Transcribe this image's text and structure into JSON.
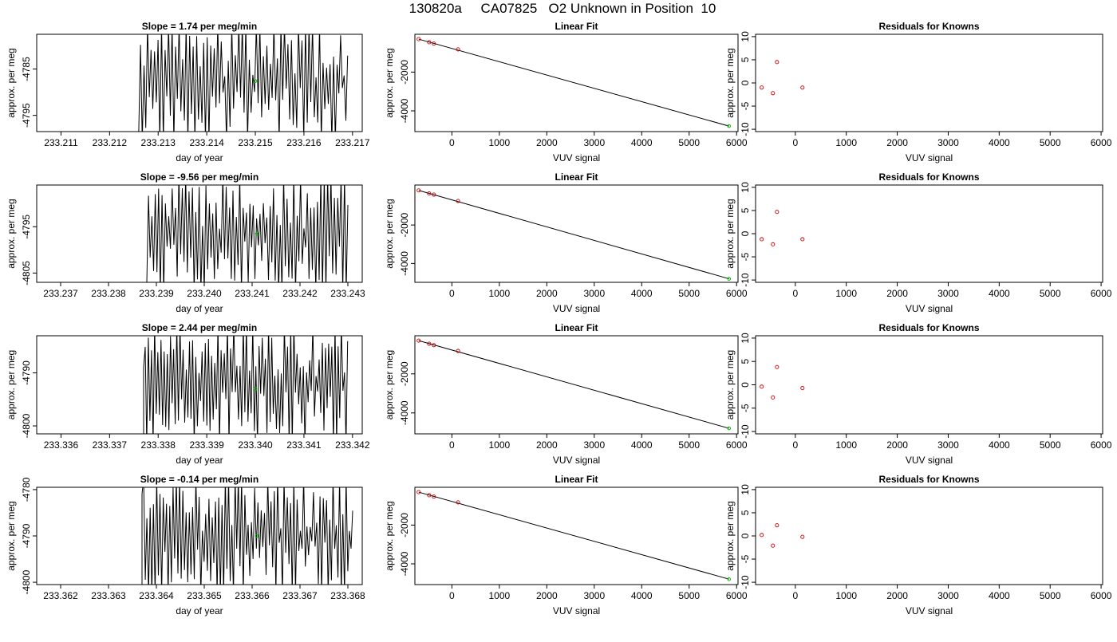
{
  "title": "130820a     CA07825   O2 Unknown in Position  10",
  "colors": {
    "trace": "#000000",
    "known_point": "#cc0000",
    "unknown_point": "#00bb00",
    "fit_line": "#000000"
  },
  "chart_data": [
    {
      "id": "r1-time",
      "type": "line",
      "title": "Slope =  1.74  per meg/min",
      "xlabel": "day of year",
      "ylabel": "approx. per meg",
      "xlim": [
        233.2105,
        233.2172
      ],
      "ylim": [
        -4798.5,
        -4777.5
      ],
      "x_ticks": [
        {
          "v": 233.211,
          "label": "233.211"
        },
        {
          "v": 233.212,
          "label": "233.212"
        },
        {
          "v": 233.213,
          "label": "233.213"
        },
        {
          "v": 233.214,
          "label": "233.214"
        },
        {
          "v": 233.215,
          "label": "233.215"
        },
        {
          "v": 233.216,
          "label": "233.216"
        },
        {
          "v": 233.217,
          "label": "233.217"
        }
      ],
      "y_ticks": [
        {
          "v": -4785,
          "label": "-4785"
        },
        {
          "v": -4795,
          "label": "-4795"
        }
      ],
      "trace": {
        "x_start": 233.2126,
        "x_end": 233.2169,
        "n": 120,
        "seed": 11,
        "initial_y": -4798.5,
        "min_y": -4798.5,
        "max_y": -4777.5
      },
      "unknown_point": {
        "x": 233.215,
        "y": -4787.6
      }
    },
    {
      "id": "r1-fit",
      "type": "scatter",
      "title": "Linear Fit",
      "xlabel": "VUV signal",
      "ylabel": "approx. per meg",
      "xlim": [
        -780,
        6030
      ],
      "ylim": [
        -5070,
        -50
      ],
      "x_ticks": [
        {
          "v": 0,
          "label": "0"
        },
        {
          "v": 1000,
          "label": "1000"
        },
        {
          "v": 2000,
          "label": "2000"
        },
        {
          "v": 3000,
          "label": "3000"
        },
        {
          "v": 4000,
          "label": "4000"
        },
        {
          "v": 5000,
          "label": "5000"
        },
        {
          "v": 6000,
          "label": "6000"
        }
      ],
      "y_ticks": [
        {
          "v": -2000,
          "label": "-2000"
        },
        {
          "v": -4000,
          "label": "-4000"
        }
      ],
      "line": {
        "x": [
          -700,
          5840
        ],
        "y": [
          -300,
          -4787
        ]
      },
      "knowns": {
        "x": [
          -700,
          -480,
          -380,
          130
        ],
        "y": [
          -300,
          -460,
          -530,
          -830
        ]
      },
      "unknown_point": {
        "x": 5840,
        "y": -4787
      }
    },
    {
      "id": "r1-res",
      "type": "scatter",
      "title": "Residuals for Knowns",
      "xlabel": "VUV signal",
      "ylabel": "approx. per meg",
      "xlim": [
        -780,
        6030
      ],
      "ylim": [
        -10.5,
        10.5
      ],
      "x_ticks": [
        {
          "v": 0,
          "label": "0"
        },
        {
          "v": 1000,
          "label": "1000"
        },
        {
          "v": 2000,
          "label": "2000"
        },
        {
          "v": 3000,
          "label": "3000"
        },
        {
          "v": 4000,
          "label": "4000"
        },
        {
          "v": 5000,
          "label": "5000"
        },
        {
          "v": 6000,
          "label": "6000"
        }
      ],
      "y_ticks": [
        {
          "v": -10,
          "label": "-10"
        },
        {
          "v": -5,
          "label": "-5"
        },
        {
          "v": 0,
          "label": "0"
        },
        {
          "v": 5,
          "label": "5"
        },
        {
          "v": 10,
          "label": "10"
        }
      ],
      "knowns": {
        "x": [
          -660,
          -440,
          -360,
          140
        ],
        "y": [
          -1.0,
          -2.2,
          4.5,
          -1.0
        ]
      }
    },
    {
      "id": "r2-time",
      "type": "line",
      "title": "Slope =  -9.56  per meg/min",
      "xlabel": "day of year",
      "ylabel": "approx. per meg",
      "xlim": [
        233.2365,
        233.2433
      ],
      "ylim": [
        -4807,
        -4786
      ],
      "x_ticks": [
        {
          "v": 233.237,
          "label": "233.237"
        },
        {
          "v": 233.238,
          "label": "233.238"
        },
        {
          "v": 233.239,
          "label": "233.239"
        },
        {
          "v": 233.24,
          "label": "233.240"
        },
        {
          "v": 233.241,
          "label": "233.241"
        },
        {
          "v": 233.242,
          "label": "233.242"
        },
        {
          "v": 233.243,
          "label": "233.243"
        }
      ],
      "y_ticks": [
        {
          "v": -4795,
          "label": "-4795"
        },
        {
          "v": -4805,
          "label": "-4805"
        }
      ],
      "trace": {
        "x_start": 233.2388,
        "x_end": 233.243,
        "n": 120,
        "seed": 23,
        "initial_y": -4807,
        "min_y": -4807,
        "max_y": -4786
      },
      "unknown_point": {
        "x": 233.2411,
        "y": -4796.5
      }
    },
    {
      "id": "r2-fit",
      "type": "scatter",
      "title": "Linear Fit",
      "xlabel": "VUV signal",
      "ylabel": "approx. per meg",
      "xlim": [
        -780,
        6030
      ],
      "ylim": [
        -4980,
        80
      ],
      "x_ticks": [
        {
          "v": 0,
          "label": "0"
        },
        {
          "v": 1000,
          "label": "1000"
        },
        {
          "v": 2000,
          "label": "2000"
        },
        {
          "v": 3000,
          "label": "3000"
        },
        {
          "v": 4000,
          "label": "4000"
        },
        {
          "v": 5000,
          "label": "5000"
        },
        {
          "v": 6000,
          "label": "6000"
        }
      ],
      "y_ticks": [
        {
          "v": -2000,
          "label": "-2000"
        },
        {
          "v": -4000,
          "label": "-4000"
        }
      ],
      "line": {
        "x": [
          -700,
          5840
        ],
        "y": [
          -200,
          -4796
        ]
      },
      "knowns": {
        "x": [
          -700,
          -480,
          -380,
          130
        ],
        "y": [
          -200,
          -360,
          -420,
          -750
        ]
      },
      "unknown_point": {
        "x": 5840,
        "y": -4796
      }
    },
    {
      "id": "r2-res",
      "type": "scatter",
      "title": "Residuals for Knowns",
      "xlabel": "VUV signal",
      "ylabel": "approx. per meg",
      "xlim": [
        -780,
        6030
      ],
      "ylim": [
        -10.5,
        10.5
      ],
      "x_ticks": [
        {
          "v": 0,
          "label": "0"
        },
        {
          "v": 1000,
          "label": "1000"
        },
        {
          "v": 2000,
          "label": "2000"
        },
        {
          "v": 3000,
          "label": "3000"
        },
        {
          "v": 4000,
          "label": "4000"
        },
        {
          "v": 5000,
          "label": "5000"
        },
        {
          "v": 6000,
          "label": "6000"
        }
      ],
      "y_ticks": [
        {
          "v": -10,
          "label": "-10"
        },
        {
          "v": -5,
          "label": "-5"
        },
        {
          "v": 0,
          "label": "0"
        },
        {
          "v": 5,
          "label": "5"
        },
        {
          "v": 10,
          "label": "10"
        }
      ],
      "knowns": {
        "x": [
          -660,
          -440,
          -360,
          140
        ],
        "y": [
          -1.2,
          -2.3,
          4.7,
          -1.2
        ]
      }
    },
    {
      "id": "r3-time",
      "type": "line",
      "title": "Slope =  2.44  per meg/min",
      "xlabel": "day of year",
      "ylabel": "approx. per meg",
      "xlim": [
        233.3355,
        233.3422
      ],
      "ylim": [
        -4801.5,
        -4783
      ],
      "x_ticks": [
        {
          "v": 233.336,
          "label": "233.336"
        },
        {
          "v": 233.337,
          "label": "233.337"
        },
        {
          "v": 233.338,
          "label": "233.338"
        },
        {
          "v": 233.339,
          "label": "233.339"
        },
        {
          "v": 233.34,
          "label": "233.340"
        },
        {
          "v": 233.341,
          "label": "233.341"
        },
        {
          "v": 233.342,
          "label": "233.342"
        }
      ],
      "y_ticks": [
        {
          "v": -4790,
          "label": "-4790"
        },
        {
          "v": -4800,
          "label": "-4800"
        }
      ],
      "trace": {
        "x_start": 233.3377,
        "x_end": 233.3419,
        "n": 130,
        "seed": 37,
        "initial_y": -4789,
        "min_y": -4801.5,
        "max_y": -4783
      },
      "unknown_point": {
        "x": 233.34,
        "y": -4793.0
      }
    },
    {
      "id": "r3-fit",
      "type": "scatter",
      "title": "Linear Fit",
      "xlabel": "VUV signal",
      "ylabel": "approx. per meg",
      "xlim": [
        -780,
        6030
      ],
      "ylim": [
        -5070,
        -50
      ],
      "x_ticks": [
        {
          "v": 0,
          "label": "0"
        },
        {
          "v": 1000,
          "label": "1000"
        },
        {
          "v": 2000,
          "label": "2000"
        },
        {
          "v": 3000,
          "label": "3000"
        },
        {
          "v": 4000,
          "label": "4000"
        },
        {
          "v": 5000,
          "label": "5000"
        },
        {
          "v": 6000,
          "label": "6000"
        }
      ],
      "y_ticks": [
        {
          "v": -2000,
          "label": "-2000"
        },
        {
          "v": -4000,
          "label": "-4000"
        }
      ],
      "line": {
        "x": [
          -700,
          5840
        ],
        "y": [
          -300,
          -4787
        ]
      },
      "knowns": {
        "x": [
          -700,
          -480,
          -380,
          130
        ],
        "y": [
          -300,
          -460,
          -530,
          -830
        ]
      },
      "unknown_point": {
        "x": 5840,
        "y": -4787
      }
    },
    {
      "id": "r3-res",
      "type": "scatter",
      "title": "Residuals for Knowns",
      "xlabel": "VUV signal",
      "ylabel": "approx. per meg",
      "xlim": [
        -780,
        6030
      ],
      "ylim": [
        -10.5,
        10.5
      ],
      "x_ticks": [
        {
          "v": 0,
          "label": "0"
        },
        {
          "v": 1000,
          "label": "1000"
        },
        {
          "v": 2000,
          "label": "2000"
        },
        {
          "v": 3000,
          "label": "3000"
        },
        {
          "v": 4000,
          "label": "4000"
        },
        {
          "v": 5000,
          "label": "5000"
        },
        {
          "v": 6000,
          "label": "6000"
        }
      ],
      "y_ticks": [
        {
          "v": -10,
          "label": "-10"
        },
        {
          "v": -5,
          "label": "-5"
        },
        {
          "v": 0,
          "label": "0"
        },
        {
          "v": 5,
          "label": "5"
        },
        {
          "v": 10,
          "label": "10"
        }
      ],
      "knowns": {
        "x": [
          -660,
          -440,
          -360,
          140
        ],
        "y": [
          -0.4,
          -2.7,
          3.8,
          -0.7
        ]
      }
    },
    {
      "id": "r4-time",
      "type": "line",
      "title": "Slope =  -0.14  per meg/min",
      "xlabel": "day of year",
      "ylabel": "approx. per meg",
      "xlim": [
        233.3615,
        233.3683
      ],
      "ylim": [
        -4800.5,
        -4779.5
      ],
      "x_ticks": [
        {
          "v": 233.362,
          "label": "233.362"
        },
        {
          "v": 233.363,
          "label": "233.363"
        },
        {
          "v": 233.364,
          "label": "233.364"
        },
        {
          "v": 233.365,
          "label": "233.365"
        },
        {
          "v": 233.366,
          "label": "233.366"
        },
        {
          "v": 233.367,
          "label": "233.367"
        },
        {
          "v": 233.368,
          "label": "233.368"
        }
      ],
      "y_ticks": [
        {
          "v": -4780,
          "label": "-4780"
        },
        {
          "v": -4790,
          "label": "-4790"
        },
        {
          "v": -4800,
          "label": "-4800"
        }
      ],
      "trace": {
        "x_start": 233.3637,
        "x_end": 233.3681,
        "n": 130,
        "seed": 53,
        "initial_y": -4781,
        "min_y": -4800.5,
        "max_y": -4779.5
      },
      "unknown_point": {
        "x": 233.3661,
        "y": -4790.0
      }
    },
    {
      "id": "r4-fit",
      "type": "scatter",
      "title": "Linear Fit",
      "xlabel": "VUV signal",
      "ylabel": "approx. per meg",
      "xlim": [
        -780,
        6030
      ],
      "ylim": [
        -5070,
        -50
      ],
      "x_ticks": [
        {
          "v": 0,
          "label": "0"
        },
        {
          "v": 1000,
          "label": "1000"
        },
        {
          "v": 2000,
          "label": "2000"
        },
        {
          "v": 3000,
          "label": "3000"
        },
        {
          "v": 4000,
          "label": "4000"
        },
        {
          "v": 5000,
          "label": "5000"
        },
        {
          "v": 6000,
          "label": "6000"
        }
      ],
      "y_ticks": [
        {
          "v": -2000,
          "label": "-2000"
        },
        {
          "v": -4000,
          "label": "-4000"
        }
      ],
      "line": {
        "x": [
          -700,
          5840
        ],
        "y": [
          -300,
          -4790
        ]
      },
      "knowns": {
        "x": [
          -700,
          -480,
          -380,
          130
        ],
        "y": [
          -300,
          -460,
          -530,
          -830
        ]
      },
      "unknown_point": {
        "x": 5840,
        "y": -4790
      }
    },
    {
      "id": "r4-res",
      "type": "scatter",
      "title": "Residuals for Knowns",
      "xlabel": "VUV signal",
      "ylabel": "approx. per meg",
      "xlim": [
        -780,
        6030
      ],
      "ylim": [
        -10.5,
        10.5
      ],
      "x_ticks": [
        {
          "v": 0,
          "label": "0"
        },
        {
          "v": 1000,
          "label": "1000"
        },
        {
          "v": 2000,
          "label": "2000"
        },
        {
          "v": 3000,
          "label": "3000"
        },
        {
          "v": 4000,
          "label": "4000"
        },
        {
          "v": 5000,
          "label": "5000"
        },
        {
          "v": 6000,
          "label": "6000"
        }
      ],
      "y_ticks": [
        {
          "v": -10,
          "label": "-10"
        },
        {
          "v": -5,
          "label": "-5"
        },
        {
          "v": 0,
          "label": "0"
        },
        {
          "v": 5,
          "label": "5"
        },
        {
          "v": 10,
          "label": "10"
        }
      ],
      "knowns": {
        "x": [
          -660,
          -440,
          -360,
          140
        ],
        "y": [
          0.2,
          -2.1,
          2.3,
          -0.2
        ]
      }
    }
  ]
}
